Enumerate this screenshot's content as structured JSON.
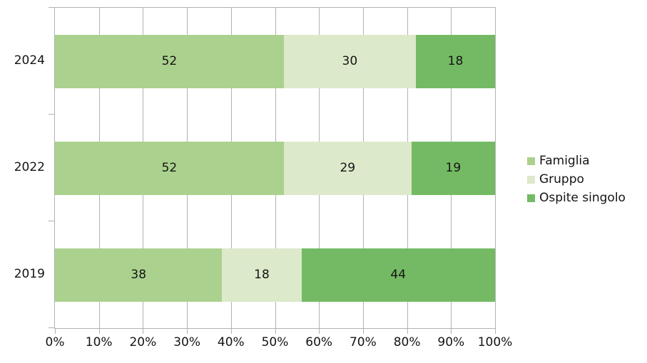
{
  "chart_data": {
    "type": "bar",
    "orientation": "horizontal",
    "stacked": true,
    "unit": "percent",
    "title": "",
    "xlabel": "",
    "ylabel": "",
    "categories": [
      "2024",
      "2022",
      "2019"
    ],
    "series": [
      {
        "name": "Famiglia",
        "key": "famiglia",
        "color": "#abd18e",
        "values": [
          52,
          52,
          38
        ]
      },
      {
        "name": "Gruppo",
        "key": "gruppo",
        "color": "#dce9ca",
        "values": [
          30,
          29,
          18
        ]
      },
      {
        "name": "Ospite singolo",
        "key": "ospite-singolo",
        "color": "#74ba64",
        "values": [
          18,
          19,
          44
        ]
      }
    ],
    "x_axis": {
      "min": 0,
      "max": 100,
      "tick_step": 10,
      "tick_labels": [
        "0%",
        "10%",
        "20%",
        "30%",
        "40%",
        "50%",
        "60%",
        "70%",
        "80%",
        "90%",
        "100%"
      ]
    },
    "legend": {
      "position": "right",
      "entries": [
        "Famiglia",
        "Gruppo",
        "Ospite singolo"
      ]
    },
    "grid": true,
    "colors": {
      "grid": "#b2b2b2",
      "axis": "#b2b2b2",
      "text": "#141414",
      "background": "#ffffff"
    }
  }
}
